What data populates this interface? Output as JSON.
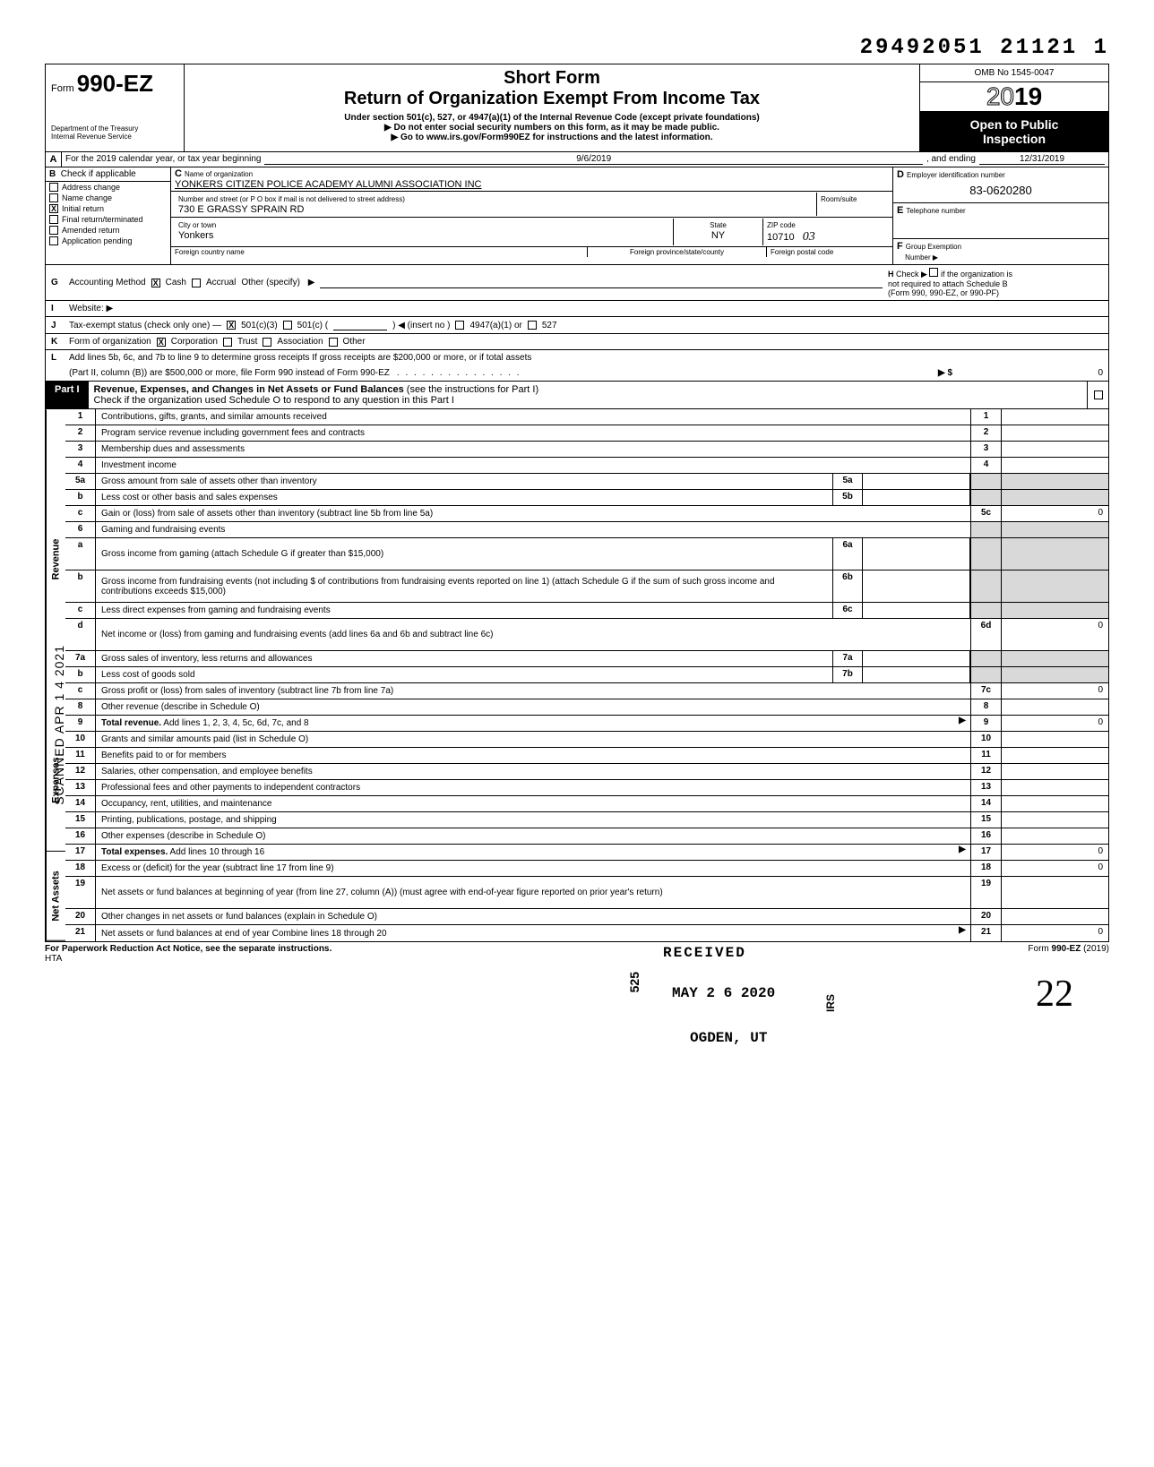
{
  "top_number": "29492051 21121  1",
  "header": {
    "form_prefix": "Form",
    "form_number": "990-EZ",
    "dept1": "Department of the Treasury",
    "dept2": "Internal Revenue Service",
    "short_form": "Short Form",
    "title": "Return of Organization Exempt From Income Tax",
    "under_section": "Under section 501(c), 527, or 4947(a)(1) of the Internal Revenue Code (except private foundations)",
    "arrow1": "▶  Do not enter social security numbers on this form, as it may be made public.",
    "arrow2": "▶  Go to www.irs.gov/Form990EZ for instructions and the latest information.",
    "omb": "OMB No 1545-0047",
    "year_outline": "20",
    "year_bold": "19",
    "open1": "Open to Public",
    "open2": "Inspection"
  },
  "line_a": {
    "label": "For the 2019 calendar year, or tax year beginning",
    "begin": "9/6/2019",
    "mid": ", and ending",
    "end": "12/31/2019"
  },
  "col_b": {
    "letter": "B",
    "head": "Check if applicable",
    "items": [
      "Address change",
      "Name change",
      "Initial return",
      "Final return/terminated",
      "Amended return",
      "Application pending"
    ],
    "checked_index": 2
  },
  "col_c": {
    "letter": "C",
    "name_lab": "Name of organization",
    "name_val": "YONKERS CITIZEN POLICE ACADEMY ALUMNI ASSOCIATION INC",
    "street_lab": "Number and street (or P O  box if mail is not delivered to street address)",
    "room_lab": "Room/suite",
    "street_val": "730 E GRASSY SPRAIN RD",
    "city_lab": "City or town",
    "state_lab": "State",
    "zip_lab": "ZIP code",
    "city_val": "Yonkers",
    "state_val": "NY",
    "zip_val": "10710",
    "zip_hand": "03",
    "foreign_country_lab": "Foreign country name",
    "foreign_prov_lab": "Foreign province/state/county",
    "foreign_postal_lab": "Foreign postal code"
  },
  "col_d": {
    "letter": "D",
    "lab": "Employer identification number",
    "val": "83-0620280"
  },
  "col_e": {
    "letter": "E",
    "lab": "Telephone number"
  },
  "col_f": {
    "letter": "F",
    "lab1": "Group Exemption",
    "lab2": "Number ▶"
  },
  "line_g": {
    "letter": "G",
    "lab": "Accounting Method",
    "cash": "Cash",
    "accrual": "Accrual",
    "other": "Other (specify)"
  },
  "line_h": {
    "letter": "H",
    "lab1": "Check ▶",
    "lab2": "if the organization is",
    "lab3": "not required to attach Schedule B",
    "lab4": "(Form 990, 990-EZ, or 990-PF)"
  },
  "line_i": {
    "letter": "I",
    "lab": "Website: ▶"
  },
  "line_j": {
    "letter": "J",
    "lab": "Tax-exempt status (check only one) —",
    "o1": "501(c)(3)",
    "o2": "501(c) (",
    "o2b": ") ◀ (insert no )",
    "o3": "4947(a)(1) or",
    "o4": "527"
  },
  "line_k": {
    "letter": "K",
    "lab": "Form of organization",
    "o1": "Corporation",
    "o2": "Trust",
    "o3": "Association",
    "o4": "Other"
  },
  "line_l": {
    "letter": "L",
    "text1": "Add lines 5b, 6c, and 7b to line 9 to determine gross receipts  If gross receipts are $200,000 or more, or if total assets",
    "text2": "(Part II, column (B)) are $500,000 or more, file Form 990 instead of Form 990-EZ",
    "arrow": "▶ $",
    "val": "0"
  },
  "part1": {
    "label": "Part I",
    "title_bold": "Revenue, Expenses, and Changes in Net Assets or Fund Balances",
    "title_rest": " (see the instructions for Part I)",
    "sched_o": "Check if the organization used Schedule O to respond to any question in this Part I"
  },
  "sections": {
    "revenue": "Revenue",
    "expenses": "Expenses",
    "netassets": "Net Assets"
  },
  "rows": [
    {
      "n": "1",
      "d": "Contributions, gifts, grants, and similar amounts received",
      "rn": "1",
      "rv": ""
    },
    {
      "n": "2",
      "d": "Program service revenue including government fees and contracts",
      "rn": "2",
      "rv": ""
    },
    {
      "n": "3",
      "d": "Membership dues and assessments",
      "rn": "3",
      "rv": ""
    },
    {
      "n": "4",
      "d": "Investment income",
      "rn": "4",
      "rv": ""
    },
    {
      "n": "5a",
      "d": "Gross amount from sale of assets other than inventory",
      "mb": "5a",
      "shade_res": true
    },
    {
      "n": "b",
      "d": "Less  cost or other basis and sales expenses",
      "mb": "5b",
      "shade_res": true
    },
    {
      "n": "c",
      "d": "Gain or (loss) from sale of assets other than inventory (subtract line 5b from line 5a)",
      "rn": "5c",
      "rv": "0"
    },
    {
      "n": "6",
      "d": "Gaming and fundraising events",
      "shade_res": true
    },
    {
      "n": "a",
      "d": "Gross income from gaming (attach Schedule G if greater than $15,000)",
      "mb": "6a",
      "shade_res": true,
      "tall": true
    },
    {
      "n": "b",
      "d": "Gross income from fundraising events (not including   $                    of contributions from fundraising events reported on line 1) (attach Schedule G if the sum of such gross income and contributions exceeds $15,000)",
      "mb": "6b",
      "shade_res": true,
      "tall": true
    },
    {
      "n": "c",
      "d": "Less  direct expenses from gaming and fundraising events",
      "mb": "6c",
      "shade_res": true
    },
    {
      "n": "d",
      "d": "Net income or (loss) from gaming and fundraising events (add lines 6a and 6b and subtract line 6c)",
      "rn": "6d",
      "rv": "0",
      "tall": true
    },
    {
      "n": "7a",
      "d": "Gross sales of inventory, less returns and allowances",
      "mb": "7a",
      "shade_res": true
    },
    {
      "n": "b",
      "d": "Less  cost of goods sold",
      "mb": "7b",
      "shade_res": true
    },
    {
      "n": "c",
      "d": "Gross profit or (loss) from sales of inventory (subtract line 7b from line 7a)",
      "rn": "7c",
      "rv": "0"
    },
    {
      "n": "8",
      "d": "Other revenue (describe in Schedule O)",
      "rn": "8",
      "rv": ""
    },
    {
      "n": "9",
      "d": "Total revenue. Add lines 1, 2, 3, 4, 5c, 6d, 7c, and 8",
      "rn": "9",
      "rv": "0",
      "bold": true,
      "arrow": true
    },
    {
      "n": "10",
      "d": "Grants and similar amounts paid (list in Schedule O)",
      "rn": "10",
      "rv": ""
    },
    {
      "n": "11",
      "d": "Benefits paid to or for members",
      "rn": "11",
      "rv": ""
    },
    {
      "n": "12",
      "d": "Salaries, other compensation, and employee benefits",
      "rn": "12",
      "rv": ""
    },
    {
      "n": "13",
      "d": "Professional fees and other payments to independent contractors",
      "rn": "13",
      "rv": ""
    },
    {
      "n": "14",
      "d": "Occupancy, rent, utilities, and maintenance",
      "rn": "14",
      "rv": ""
    },
    {
      "n": "15",
      "d": "Printing, publications, postage, and shipping",
      "rn": "15",
      "rv": ""
    },
    {
      "n": "16",
      "d": "Other expenses (describe in Schedule O)",
      "rn": "16",
      "rv": ""
    },
    {
      "n": "17",
      "d": "Total expenses. Add lines 10 through 16",
      "rn": "17",
      "rv": "0",
      "bold": true,
      "arrow": true
    },
    {
      "n": "18",
      "d": "Excess or (deficit) for the year (subtract line 17 from line 9)",
      "rn": "18",
      "rv": "0"
    },
    {
      "n": "19",
      "d": "Net assets or fund balances at beginning of year (from line 27, column (A)) (must agree with end-of-year figure reported on prior year's return)",
      "rn": "19",
      "rv": "",
      "tall": true
    },
    {
      "n": "20",
      "d": "Other changes in net assets or fund balances (explain in Schedule O)",
      "rn": "20",
      "rv": ""
    },
    {
      "n": "21",
      "d": "Net assets or fund balances at end of year  Combine lines 18 through 20",
      "rn": "21",
      "rv": "0",
      "arrow": true
    }
  ],
  "stamps": {
    "received": "RECEIVED",
    "date": "MAY 2 6 2020",
    "ogden": "OGDEN, UT",
    "s525": "525",
    "irs": "IRS"
  },
  "footer": {
    "left": "For Paperwork Reduction Act Notice, see the separate instructions.",
    "hta": "HTA",
    "right": "Form 990-EZ (2019)"
  },
  "scanned": "SCANNED APR 1 4 2021",
  "signature": "22"
}
